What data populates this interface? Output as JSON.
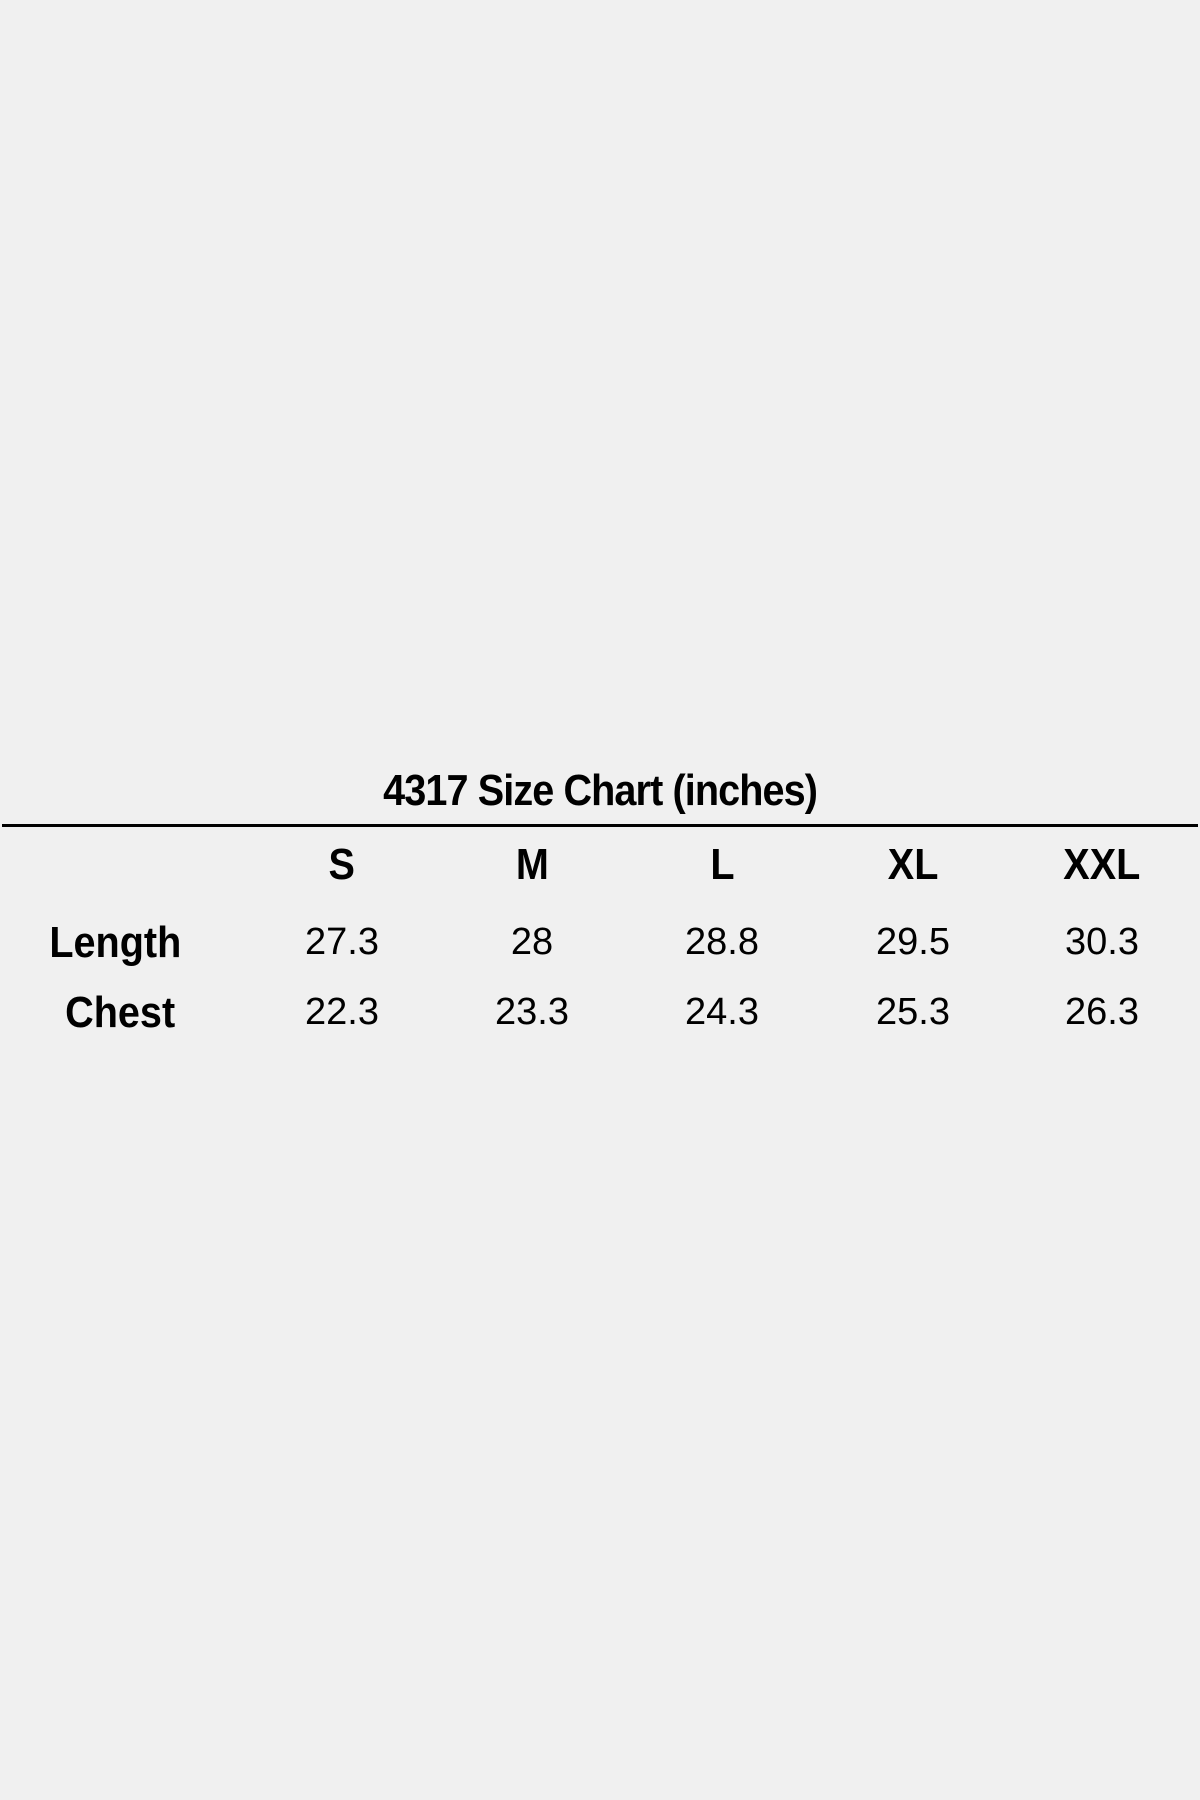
{
  "title": "4317 Size Chart (inches)",
  "sizes": [
    "S",
    "M",
    "L",
    "XL",
    "XXL"
  ],
  "rows": [
    {
      "label": "Length",
      "values": [
        "27.3",
        "28",
        "28.8",
        "29.5",
        "30.3"
      ]
    },
    {
      "label": "Chest",
      "values": [
        "22.3",
        "23.3",
        "24.3",
        "25.3",
        "26.3"
      ]
    }
  ],
  "chart_data": {
    "type": "table",
    "title": "4317 Size Chart (inches)",
    "columns": [
      "S",
      "M",
      "L",
      "XL",
      "XXL"
    ],
    "rows": [
      {
        "label": "Length",
        "values": [
          27.3,
          28,
          28.8,
          29.5,
          30.3
        ]
      },
      {
        "label": "Chest",
        "values": [
          22.3,
          23.3,
          24.3,
          25.3,
          26.3
        ]
      }
    ]
  }
}
